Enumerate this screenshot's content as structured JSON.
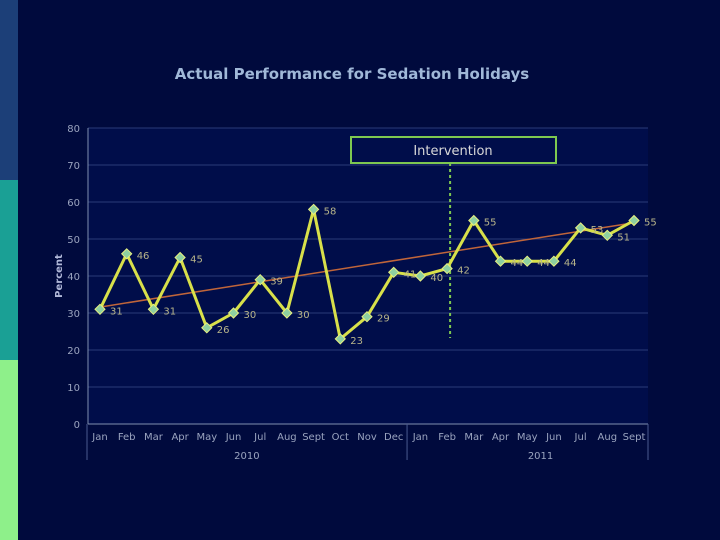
{
  "chart_data": {
    "type": "line",
    "title": "Actual Performance for Sedation Holidays",
    "ylabel": "Percent",
    "xlabel": "",
    "ylim": [
      0,
      80
    ],
    "y_ticks": [
      0,
      10,
      20,
      30,
      40,
      50,
      60,
      70,
      80
    ],
    "categories": [
      "Jan",
      "Feb",
      "Mar",
      "Apr",
      "May",
      "Jun",
      "Jul",
      "Aug",
      "Sept",
      "Oct",
      "Nov",
      "Dec",
      "Jan",
      "Feb",
      "Mar",
      "Apr",
      "May",
      "Jun",
      "Jul",
      "Aug",
      "Sept"
    ],
    "year_labels": [
      {
        "label": "2010",
        "category_index": 5.5
      },
      {
        "label": "2011",
        "category_index": 16.5
      }
    ],
    "series": [
      {
        "values": [
          31,
          46,
          31,
          45,
          26,
          30,
          39,
          30,
          58,
          23,
          29,
          41,
          40,
          42,
          55,
          44,
          44,
          44,
          53,
          51,
          55
        ],
        "labels": [
          "31",
          "46",
          "31",
          "45",
          "26",
          "30",
          "39",
          "30",
          "58",
          "23",
          "29",
          "41",
          "40",
          "42",
          "55",
          "44",
          "44",
          "44",
          "53",
          "51",
          "55"
        ],
        "color": "#d8e04a"
      }
    ],
    "trendline": {
      "start": 31.6,
      "end": 54.4,
      "color": "#c0653a"
    },
    "intervention": {
      "label": "Intervention",
      "after_category_index": 13,
      "color": "#7ec850"
    },
    "grid": true,
    "legend": "none"
  },
  "colors": {
    "background": "#000a3d",
    "plot_background": "#000d4a",
    "line": "#d8e04a",
    "marker": "#8ed0a0",
    "axis": "#8090b0"
  }
}
